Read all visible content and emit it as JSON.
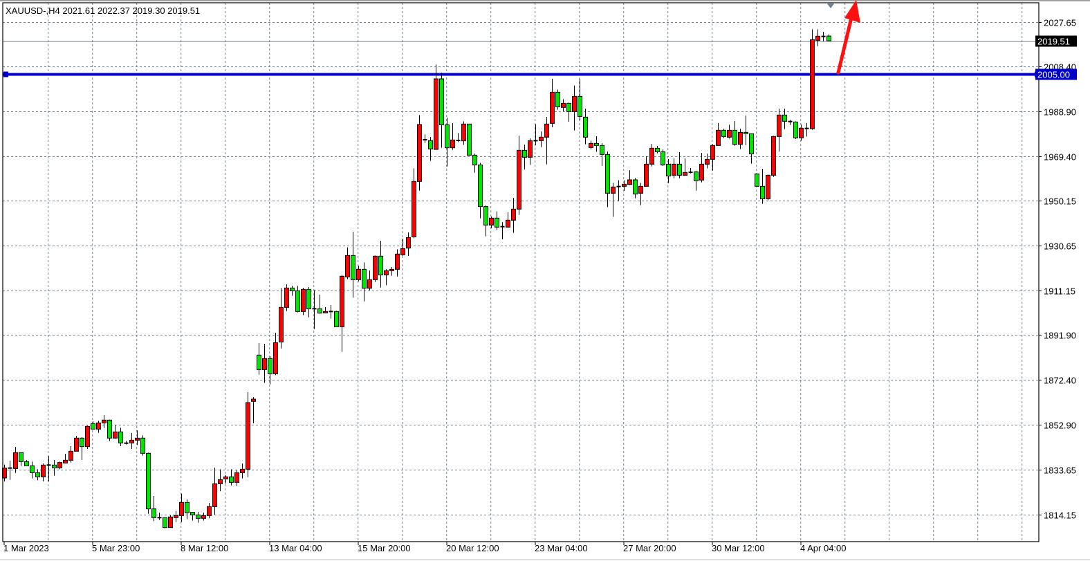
{
  "header": {
    "symbol": "XAUUSD-",
    "timeframe": "H4",
    "ohlc_text": "XAUUSD-,H4  2021.61 2022.37 2019.30 2019.51"
  },
  "colors": {
    "bull_body": "#ff0000",
    "bear_body": "#00e600",
    "candle_outline": "#000000",
    "grid": "#708090",
    "horizontal_line": "#0000c8",
    "bid_line": "#708090",
    "arrow": "#ff1010",
    "background": "#ffffff"
  },
  "chart_data": {
    "type": "candlestick",
    "title": "",
    "grid": true,
    "ylim": [
      1806.0,
      2036.0
    ],
    "y_ticks": [
      "2027.65",
      "2008.40",
      "1988.90",
      "1969.40",
      "1950.15",
      "1930.65",
      "1911.15",
      "1891.90",
      "1872.40",
      "1852.90",
      "1833.65",
      "1814.15"
    ],
    "x_labels": [
      {
        "index": 0,
        "label": "1 Mar 2023"
      },
      {
        "index": 16,
        "label": "5 Mar 23:00"
      },
      {
        "index": 32,
        "label": "8 Mar 12:00"
      },
      {
        "index": 48,
        "label": "13 Mar 04:00"
      },
      {
        "index": 64,
        "label": "15 Mar 20:00"
      },
      {
        "index": 80,
        "label": "20 Mar 12:00"
      },
      {
        "index": 96,
        "label": "23 Mar 04:00"
      },
      {
        "index": 112,
        "label": "27 Mar 20:00"
      },
      {
        "index": 128,
        "label": "30 Mar 12:00"
      },
      {
        "index": 144,
        "label": "4 Apr 04:00"
      }
    ],
    "current_price": {
      "value": 2019.51,
      "label": "2019.51"
    },
    "horizontal_line": {
      "value": 2005.0,
      "label": "2005.00"
    },
    "annotation_arrow": {
      "direction": "up",
      "from_price": 2005.0
    },
    "candles_ohlc": [
      [
        1829.95,
        1835.75,
        1828.45,
        1834.25
      ],
      [
        1834.25,
        1837.45,
        1829.15,
        1834.25
      ],
      [
        1834.05,
        1843.45,
        1832.15,
        1840.95
      ],
      [
        1840.95,
        1840.95,
        1835.15,
        1837.05
      ],
      [
        1837.05,
        1837.75,
        1835.25,
        1835.25
      ],
      [
        1835.25,
        1837.05,
        1829.75,
        1832.25
      ],
      [
        1832.25,
        1833.75,
        1828.95,
        1830.45
      ],
      [
        1830.45,
        1836.25,
        1828.45,
        1835.55
      ],
      [
        1835.55,
        1839.45,
        1828.45,
        1835.55
      ],
      [
        1835.55,
        1837.75,
        1830.95,
        1834.35
      ],
      [
        1834.35,
        1837.05,
        1833.75,
        1836.65
      ],
      [
        1836.45,
        1840.45,
        1836.45,
        1837.65
      ],
      [
        1837.65,
        1843.75,
        1836.65,
        1841.55
      ],
      [
        1841.55,
        1848.25,
        1841.55,
        1847.25
      ],
      [
        1847.25,
        1847.65,
        1837.75,
        1843.55
      ],
      [
        1843.55,
        1852.65,
        1842.55,
        1852.35
      ],
      [
        1853.55,
        1854.55,
        1851.15,
        1851.15
      ],
      [
        1851.15,
        1854.75,
        1849.55,
        1853.85
      ],
      [
        1853.85,
        1857.25,
        1851.65,
        1855.05
      ],
      [
        1855.05,
        1855.25,
        1845.95,
        1847.25
      ],
      [
        1847.25,
        1853.05,
        1846.95,
        1849.95
      ],
      [
        1849.95,
        1851.75,
        1843.75,
        1845.15
      ],
      [
        1845.05,
        1846.05,
        1844.45,
        1845.05
      ],
      [
        1845.15,
        1849.45,
        1842.55,
        1846.35
      ],
      [
        1846.35,
        1850.65,
        1844.25,
        1847.25
      ],
      [
        1847.25,
        1848.45,
        1839.65,
        1840.65
      ],
      [
        1840.65,
        1840.95,
        1814.45,
        1816.55
      ],
      [
        1816.55,
        1822.15,
        1811.25,
        1812.75
      ],
      [
        1812.75,
        1814.95,
        1811.75,
        1812.75
      ],
      [
        1812.75,
        1812.75,
        1808.15,
        1808.45
      ],
      [
        1808.45,
        1813.75,
        1808.45,
        1813.05
      ],
      [
        1812.75,
        1815.65,
        1810.85,
        1813.65
      ],
      [
        1813.65,
        1823.15,
        1810.85,
        1819.35
      ],
      [
        1819.35,
        1820.65,
        1812.05,
        1814.85
      ],
      [
        1815.05,
        1815.25,
        1811.45,
        1813.95
      ],
      [
        1813.95,
        1815.25,
        1810.55,
        1812.45
      ],
      [
        1812.45,
        1814.95,
        1811.45,
        1813.65
      ],
      [
        1813.65,
        1819.15,
        1812.45,
        1817.55
      ],
      [
        1817.55,
        1834.45,
        1814.05,
        1827.45
      ],
      [
        1827.45,
        1833.75,
        1824.25,
        1829.25
      ],
      [
        1829.55,
        1831.15,
        1827.55,
        1830.45
      ],
      [
        1830.45,
        1833.75,
        1826.75,
        1828.05
      ],
      [
        1828.05,
        1833.45,
        1826.45,
        1832.25
      ],
      [
        1832.25,
        1836.25,
        1829.75,
        1833.75
      ],
      [
        1833.75,
        1867.15,
        1830.25,
        1862.65
      ],
      [
        1863.15,
        1865.05,
        1853.65,
        1864.15
      ],
      [
        1883.25,
        1888.45,
        1874.75,
        1876.95
      ],
      [
        1876.95,
        1888.15,
        1871.25,
        1881.75
      ],
      [
        1881.75,
        1882.75,
        1870.55,
        1875.15
      ],
      [
        1875.15,
        1892.95,
        1874.55,
        1888.65
      ],
      [
        1888.95,
        1912.35,
        1886.15,
        1903.95
      ],
      [
        1903.95,
        1913.95,
        1902.35,
        1912.35
      ],
      [
        1912.35,
        1913.35,
        1908.95,
        1911.15
      ],
      [
        1911.15,
        1913.25,
        1901.75,
        1902.15
      ],
      [
        1902.15,
        1912.45,
        1900.55,
        1911.75
      ],
      [
        1911.75,
        1912.75,
        1899.65,
        1903.35
      ],
      [
        1903.35,
        1911.45,
        1894.55,
        1903.35
      ],
      [
        1903.35,
        1909.45,
        1901.25,
        1901.45
      ],
      [
        1901.55,
        1904.05,
        1901.55,
        1902.15
      ],
      [
        1902.15,
        1904.95,
        1899.05,
        1902.15
      ],
      [
        1902.15,
        1902.45,
        1895.55,
        1895.55
      ],
      [
        1895.55,
        1918.05,
        1884.65,
        1917.45
      ],
      [
        1917.15,
        1929.95,
        1916.15,
        1926.45
      ],
      [
        1926.45,
        1936.75,
        1908.15,
        1915.95
      ],
      [
        1915.95,
        1922.05,
        1915.25,
        1920.45
      ],
      [
        1920.45,
        1923.45,
        1906.55,
        1912.25
      ],
      [
        1912.25,
        1919.95,
        1911.35,
        1915.95
      ],
      [
        1915.95,
        1926.45,
        1914.95,
        1926.15
      ],
      [
        1926.15,
        1932.85,
        1912.55,
        1918.05
      ],
      [
        1918.05,
        1920.55,
        1913.55,
        1919.85
      ],
      [
        1919.85,
        1921.45,
        1917.65,
        1920.45
      ],
      [
        1920.45,
        1929.15,
        1917.35,
        1927.05
      ],
      [
        1926.75,
        1933.75,
        1926.25,
        1929.45
      ],
      [
        1929.65,
        1936.45,
        1926.25,
        1934.25
      ],
      [
        1934.55,
        1964.25,
        1933.95,
        1958.55
      ],
      [
        1958.55,
        1987.35,
        1954.55,
        1983.25
      ],
      [
        1976.65,
        1978.95,
        1975.25,
        1976.65
      ],
      [
        1976.25,
        1977.85,
        1967.45,
        1972.65
      ],
      [
        1972.45,
        2009.25,
        1972.25,
        2003.05
      ],
      [
        2003.05,
        2005.75,
        1973.15,
        1983.15
      ],
      [
        1983.15,
        1986.25,
        1965.05,
        1973.15
      ],
      [
        1973.15,
        1983.85,
        1972.25,
        1976.55
      ],
      [
        1976.35,
        1979.55,
        1975.65,
        1976.35
      ],
      [
        1976.15,
        1984.65,
        1974.45,
        1983.45
      ],
      [
        1983.45,
        1983.45,
        1969.95,
        1969.95
      ],
      [
        1969.95,
        1970.65,
        1962.35,
        1965.75
      ],
      [
        1965.75,
        1966.65,
        1942.55,
        1947.65
      ],
      [
        1947.65,
        1948.15,
        1934.75,
        1939.65
      ],
      [
        1939.65,
        1943.35,
        1938.25,
        1942.65
      ],
      [
        1942.65,
        1945.55,
        1937.45,
        1938.75
      ],
      [
        1938.95,
        1940.95,
        1933.45,
        1938.95
      ],
      [
        1938.75,
        1945.15,
        1938.75,
        1941.75
      ],
      [
        1941.75,
        1951.45,
        1936.25,
        1946.55
      ],
      [
        1946.55,
        1978.45,
        1944.05,
        1972.05
      ],
      [
        1972.05,
        1974.55,
        1963.75,
        1969.05
      ],
      [
        1969.05,
        1977.25,
        1965.75,
        1976.25
      ],
      [
        1976.25,
        1983.35,
        1974.25,
        1976.25
      ],
      [
        1976.25,
        1980.25,
        1973.45,
        1977.75
      ],
      [
        1977.75,
        1986.55,
        1965.95,
        1983.45
      ],
      [
        1983.75,
        2003.05,
        1982.05,
        1997.25
      ],
      [
        1997.25,
        1998.45,
        1989.65,
        1990.95
      ],
      [
        1990.65,
        1994.25,
        1988.95,
        1992.45
      ],
      [
        1992.45,
        1992.75,
        1984.45,
        1988.85
      ],
      [
        1988.85,
        2000.15,
        1980.65,
        1995.45
      ],
      [
        1995.45,
        2002.95,
        1985.25,
        1986.75
      ],
      [
        1986.45,
        1990.15,
        1974.65,
        1977.75
      ],
      [
        1973.25,
        1976.25,
        1972.45,
        1975.05
      ],
      [
        1975.05,
        1978.15,
        1971.45,
        1974.15
      ],
      [
        1974.15,
        1975.15,
        1965.25,
        1970.25
      ],
      [
        1970.25,
        1971.55,
        1947.45,
        1953.45
      ],
      [
        1953.45,
        1957.95,
        1943.25,
        1956.15
      ],
      [
        1956.35,
        1959.05,
        1950.05,
        1956.35
      ],
      [
        1956.45,
        1959.05,
        1954.45,
        1957.35
      ],
      [
        1957.25,
        1963.45,
        1957.05,
        1959.25
      ],
      [
        1959.25,
        1960.05,
        1951.25,
        1953.15
      ],
      [
        1953.45,
        1957.95,
        1948.25,
        1956.45
      ],
      [
        1956.45,
        1969.45,
        1956.45,
        1966.05
      ],
      [
        1966.05,
        1974.85,
        1965.05,
        1972.95
      ],
      [
        1972.95,
        1973.95,
        1970.75,
        1971.45
      ],
      [
        1971.45,
        1972.45,
        1965.25,
        1965.75
      ],
      [
        1966.05,
        1968.25,
        1957.85,
        1960.95
      ],
      [
        1961.25,
        1968.55,
        1959.95,
        1966.05
      ],
      [
        1966.05,
        1971.25,
        1959.95,
        1961.25
      ],
      [
        1961.25,
        1968.55,
        1961.25,
        1962.45
      ],
      [
        1962.55,
        1964.35,
        1962.05,
        1962.55
      ],
      [
        1962.75,
        1963.05,
        1954.55,
        1958.85
      ],
      [
        1959.15,
        1970.95,
        1958.15,
        1966.05
      ],
      [
        1966.05,
        1970.65,
        1964.25,
        1968.15
      ],
      [
        1968.15,
        1974.65,
        1963.25,
        1974.15
      ],
      [
        1974.15,
        1983.85,
        1974.15,
        1980.75
      ],
      [
        1980.75,
        1981.45,
        1977.35,
        1978.05
      ],
      [
        1977.75,
        1983.15,
        1977.15,
        1980.75
      ],
      [
        1980.75,
        1984.75,
        1974.05,
        1974.65
      ],
      [
        1974.65,
        1981.45,
        1972.55,
        1979.85
      ],
      [
        1979.85,
        1987.15,
        1974.25,
        1979.25
      ],
      [
        1979.25,
        1979.25,
        1966.25,
        1970.55
      ],
      [
        1961.85,
        1961.85,
        1956.25,
        1956.45
      ],
      [
        1956.45,
        1964.05,
        1948.85,
        1951.05
      ],
      [
        1951.05,
        1961.55,
        1950.45,
        1961.25
      ],
      [
        1961.25,
        1978.35,
        1960.55,
        1978.05
      ],
      [
        1978.05,
        1990.15,
        1971.55,
        1987.35
      ],
      [
        1987.35,
        1990.15,
        1981.25,
        1984.65
      ],
      [
        1984.55,
        1985.25,
        1983.05,
        1984.55
      ],
      [
        1984.35,
        1984.65,
        1976.95,
        1977.45
      ],
      [
        1977.45,
        1983.25,
        1976.25,
        1981.65
      ],
      [
        1981.55,
        1983.85,
        1978.05,
        1981.55
      ],
      [
        1981.45,
        2024.55,
        1980.95,
        2020.05
      ],
      [
        2019.75,
        2024.55,
        2017.25,
        2021.55
      ],
      [
        2021.45,
        2023.45,
        2019.25,
        2021.45
      ],
      [
        2021.61,
        2022.37,
        2019.3,
        2019.51
      ]
    ]
  }
}
